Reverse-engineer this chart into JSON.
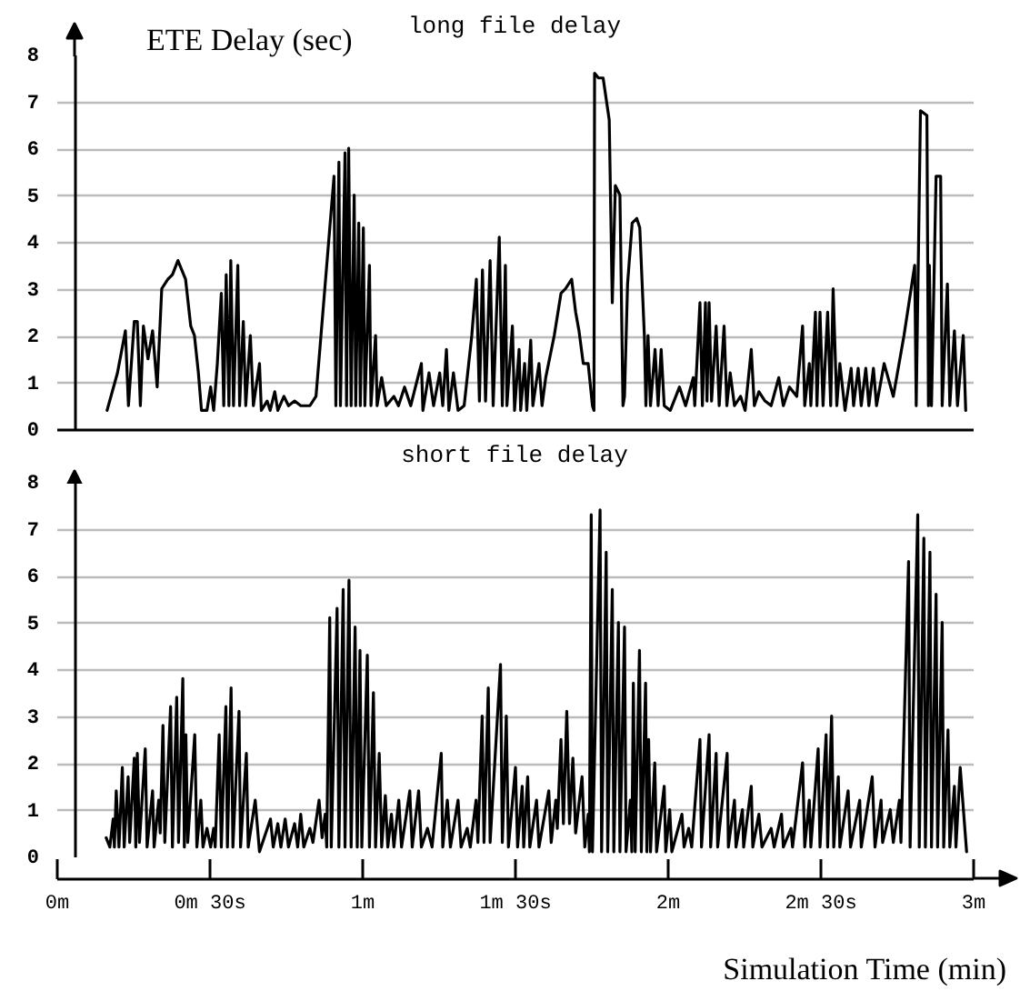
{
  "chart_data": [
    {
      "type": "line",
      "title": "long file delay",
      "ylabel": "ETE Delay (sec)",
      "color": "#000000",
      "xlim": [
        0,
        3
      ],
      "ylim": [
        0,
        8
      ],
      "yticks": [
        0,
        1,
        2,
        3,
        4,
        5,
        6,
        7,
        8
      ],
      "grid": "y",
      "tick_labels": "y",
      "x": [
        0.166,
        0.2,
        0.226,
        0.236,
        0.255,
        0.265,
        0.275,
        0.285,
        0.3,
        0.315,
        0.33,
        0.345,
        0.365,
        0.38,
        0.398,
        0.423,
        0.44,
        0.452,
        0.465,
        0.475,
        0.493,
        0.505,
        0.515,
        0.527,
        0.54,
        0.548,
        0.556,
        0.565,
        0.571,
        0.58,
        0.594,
        0.6,
        0.612,
        0.62,
        0.635,
        0.645,
        0.665,
        0.671,
        0.69,
        0.7,
        0.715,
        0.725,
        0.745,
        0.76,
        0.78,
        0.8,
        0.83,
        0.85,
        0.909,
        0.915,
        0.925,
        0.93,
        0.945,
        0.95,
        0.957,
        0.965,
        0.975,
        0.98,
        0.99,
        0.995,
        1.005,
        1.01,
        1.025,
        1.03,
        1.045,
        1.05,
        1.065,
        1.08,
        1.105,
        1.12,
        1.14,
        1.16,
        1.195,
        1.2,
        1.22,
        1.235,
        1.255,
        1.265,
        1.277,
        1.285,
        1.3,
        1.315,
        1.335,
        1.36,
        1.375,
        1.385,
        1.395,
        1.405,
        1.42,
        1.43,
        1.45,
        1.46,
        1.47,
        1.475,
        1.493,
        1.5,
        1.515,
        1.52,
        1.533,
        1.54,
        1.553,
        1.56,
        1.58,
        1.59,
        1.602,
        1.63,
        1.652,
        1.667,
        1.687,
        1.7,
        1.711,
        1.725,
        1.741,
        1.755,
        1.76,
        1.762,
        1.775,
        1.79,
        1.81,
        1.82,
        1.83,
        1.845,
        1.855,
        1.86,
        1.87,
        1.885,
        1.9,
        1.91,
        1.925,
        1.93,
        1.937,
        1.945,
        1.96,
        1.97,
        1.98,
        1.99,
        2.01,
        2.04,
        2.06,
        2.085,
        2.09,
        2.107,
        2.115,
        2.125,
        2.13,
        2.137,
        2.145,
        2.16,
        2.17,
        2.186,
        2.195,
        2.206,
        2.22,
        2.24,
        2.255,
        2.275,
        2.285,
        2.3,
        2.32,
        2.34,
        2.365,
        2.38,
        2.4,
        2.424,
        2.443,
        2.45,
        2.465,
        2.47,
        2.485,
        2.49,
        2.5,
        2.51,
        2.525,
        2.535,
        2.543,
        2.555,
        2.565,
        2.582,
        2.602,
        2.61,
        2.625,
        2.635,
        2.65,
        2.66,
        2.675,
        2.685,
        2.71,
        2.74,
        2.775,
        2.81,
        2.815,
        2.829,
        2.85,
        2.855,
        2.858,
        2.865,
        2.88,
        2.895,
        2.9,
        2.917,
        2.925,
        2.94,
        2.95,
        2.969,
        2.977
      ],
      "values": [
        0.4,
        1.2,
        2.1,
        0.5,
        2.3,
        2.3,
        0.5,
        2.2,
        1.5,
        2.1,
        0.9,
        3.0,
        3.2,
        3.3,
        3.6,
        3.2,
        2.2,
        2.0,
        1.2,
        0.4,
        0.4,
        0.9,
        0.4,
        1.4,
        2.9,
        0.5,
        3.3,
        0.5,
        3.6,
        0.5,
        3.5,
        0.5,
        2.3,
        0.5,
        2.0,
        0.5,
        1.4,
        0.4,
        0.6,
        0.4,
        0.8,
        0.4,
        0.7,
        0.5,
        0.6,
        0.5,
        0.5,
        0.7,
        5.4,
        0.5,
        5.7,
        0.5,
        5.9,
        0.5,
        6.0,
        0.5,
        5.0,
        0.5,
        4.4,
        0.5,
        4.3,
        0.5,
        3.5,
        0.5,
        2.0,
        0.5,
        1.1,
        0.5,
        0.7,
        0.5,
        0.9,
        0.5,
        1.4,
        0.4,
        1.2,
        0.5,
        1.2,
        0.5,
        1.7,
        0.4,
        1.2,
        0.4,
        0.5,
        2.0,
        3.2,
        0.6,
        3.4,
        0.6,
        3.6,
        0.5,
        4.1,
        0.5,
        3.5,
        0.5,
        2.2,
        0.4,
        1.7,
        0.4,
        1.4,
        0.4,
        1.9,
        0.5,
        1.4,
        0.5,
        1.1,
        2.0,
        2.9,
        3.0,
        3.2,
        2.5,
        2.1,
        1.4,
        1.4,
        0.5,
        0.4,
        7.6,
        7.5,
        7.5,
        6.6,
        2.7,
        5.2,
        5.0,
        0.5,
        0.7,
        3.1,
        4.4,
        4.5,
        4.3,
        2.0,
        0.5,
        2.0,
        0.5,
        1.7,
        0.5,
        1.7,
        0.5,
        0.4,
        0.9,
        0.5,
        1.1,
        0.5,
        2.7,
        0.5,
        2.7,
        0.6,
        2.7,
        0.6,
        2.2,
        0.5,
        2.2,
        0.5,
        1.2,
        0.5,
        0.7,
        0.4,
        1.7,
        0.5,
        0.8,
        0.6,
        0.5,
        1.1,
        0.5,
        0.9,
        0.7,
        2.2,
        0.5,
        1.4,
        0.5,
        2.5,
        0.5,
        2.5,
        0.5,
        2.5,
        0.5,
        3.0,
        0.5,
        1.4,
        0.4,
        1.3,
        0.5,
        1.3,
        0.5,
        1.3,
        0.5,
        1.3,
        0.5,
        1.4,
        0.7,
        2.0,
        3.5,
        0.5,
        6.8,
        6.7,
        0.5,
        3.5,
        0.5,
        5.4,
        5.4,
        0.5,
        3.1,
        0.5,
        2.1,
        0.5,
        2.0,
        0.4
      ]
    },
    {
      "type": "line",
      "title": "short file delay",
      "xlabel": "Simulation Time (min)",
      "color": "#000000",
      "xlim": [
        0,
        3
      ],
      "xticks": [
        {
          "value": 0,
          "label": "0m"
        },
        {
          "value": 0.5,
          "label": "0m 30s"
        },
        {
          "value": 1,
          "label": "1m"
        },
        {
          "value": 1.5,
          "label": "1m 30s"
        },
        {
          "value": 2,
          "label": "2m"
        },
        {
          "value": 2.5,
          "label": "2m 30s"
        },
        {
          "value": 3,
          "label": "3m"
        }
      ],
      "ylim": [
        0,
        8
      ],
      "yticks": [
        0,
        1,
        2,
        3,
        4,
        5,
        6,
        7,
        8
      ],
      "grid": "y",
      "x": [
        0.163,
        0.175,
        0.186,
        0.19,
        0.196,
        0.205,
        0.216,
        0.222,
        0.235,
        0.24,
        0.255,
        0.26,
        0.265,
        0.272,
        0.291,
        0.297,
        0.315,
        0.32,
        0.335,
        0.34,
        0.349,
        0.355,
        0.374,
        0.38,
        0.394,
        0.4,
        0.414,
        0.419,
        0.424,
        0.43,
        0.453,
        0.46,
        0.473,
        0.48,
        0.493,
        0.505,
        0.515,
        0.52,
        0.533,
        0.54,
        0.555,
        0.56,
        0.572,
        0.578,
        0.598,
        0.603,
        0.622,
        0.628,
        0.651,
        0.665,
        0.701,
        0.71,
        0.725,
        0.735,
        0.749,
        0.76,
        0.78,
        0.79,
        0.8,
        0.81,
        0.83,
        0.84,
        0.86,
        0.87,
        0.88,
        0.885,
        0.895,
        0.9,
        0.919,
        0.925,
        0.939,
        0.945,
        0.958,
        0.965,
        0.978,
        0.985,
        0.994,
        1.0,
        1.018,
        1.025,
        1.038,
        1.045,
        1.057,
        1.065,
        1.077,
        1.085,
        1.097,
        1.105,
        1.121,
        1.13,
        1.157,
        1.165,
        1.186,
        1.195,
        1.215,
        1.23,
        1.26,
        1.265,
        1.28,
        1.29,
        1.315,
        1.325,
        1.345,
        1.355,
        1.374,
        1.38,
        1.394,
        1.4,
        1.414,
        1.42,
        1.454,
        1.46,
        1.473,
        1.48,
        1.503,
        1.51,
        1.525,
        1.53,
        1.543,
        1.55,
        1.572,
        1.58,
        1.612,
        1.62,
        1.635,
        1.64,
        1.652,
        1.66,
        1.671,
        1.68,
        1.691,
        1.7,
        1.721,
        1.73,
        1.741,
        1.745,
        1.751,
        1.755,
        1.78,
        1.785,
        1.8,
        1.805,
        1.82,
        1.825,
        1.84,
        1.845,
        1.86,
        1.865,
        1.879,
        1.884,
        1.889,
        1.895,
        1.909,
        1.915,
        1.929,
        1.933,
        1.939,
        1.945,
        1.959,
        1.965,
        1.99,
        1.995,
        2.008,
        2.015,
        2.048,
        2.055,
        2.07,
        2.08,
        2.107,
        2.112,
        2.137,
        2.142,
        2.16,
        2.165,
        2.196,
        2.2,
        2.22,
        2.225,
        2.246,
        2.25,
        2.275,
        2.28,
        2.3,
        2.31,
        2.34,
        2.35,
        2.374,
        2.38,
        2.405,
        2.41,
        2.443,
        2.45,
        2.465,
        2.47,
        2.494,
        2.5,
        2.52,
        2.525,
        2.538,
        2.545,
        2.56,
        2.565,
        2.592,
        2.6,
        2.63,
        2.635,
        2.671,
        2.68,
        2.7,
        2.705,
        2.73,
        2.74,
        2.76,
        2.765,
        2.79,
        2.795,
        2.82,
        2.825,
        2.84,
        2.845,
        2.86,
        2.865,
        2.88,
        2.885,
        2.9,
        2.905,
        2.919,
        2.925,
        2.94,
        2.945,
        2.959,
        2.98
      ],
      "values": [
        0.4,
        0.2,
        0.8,
        0.2,
        1.4,
        0.2,
        1.9,
        0.2,
        1.7,
        0.3,
        2.1,
        0.2,
        2.2,
        0.3,
        2.3,
        0.2,
        1.4,
        0.2,
        1.2,
        0.5,
        2.8,
        0.3,
        3.2,
        0.2,
        3.4,
        0.3,
        3.8,
        0.2,
        2.6,
        0.3,
        2.6,
        0.2,
        1.2,
        0.2,
        0.6,
        0.2,
        0.6,
        0.2,
        2.6,
        0.2,
        3.2,
        0.2,
        3.6,
        0.2,
        3.1,
        0.2,
        2.2,
        0.2,
        1.2,
        0.1,
        0.8,
        0.2,
        0.7,
        0.2,
        0.8,
        0.2,
        0.7,
        0.2,
        0.9,
        0.2,
        0.6,
        0.3,
        1.2,
        0.4,
        0.9,
        0.2,
        5.1,
        0.2,
        5.3,
        0.2,
        5.7,
        0.2,
        5.9,
        0.2,
        4.9,
        0.2,
        4.4,
        0.2,
        4.3,
        0.2,
        3.5,
        0.2,
        2.2,
        0.2,
        1.3,
        0.2,
        0.9,
        0.2,
        1.2,
        0.2,
        1.4,
        0.2,
        1.4,
        0.2,
        0.6,
        0.2,
        2.2,
        0.2,
        1.2,
        0.2,
        1.2,
        0.2,
        0.6,
        0.2,
        1.2,
        0.3,
        3.0,
        0.3,
        3.6,
        0.3,
        4.1,
        0.3,
        3.0,
        0.2,
        1.9,
        0.2,
        1.5,
        0.2,
        1.7,
        0.2,
        1.2,
        0.2,
        1.4,
        0.3,
        1.2,
        0.6,
        2.5,
        0.7,
        3.1,
        0.7,
        2.1,
        0.5,
        1.7,
        0.2,
        0.9,
        0.1,
        7.3,
        0.1,
        7.4,
        0.1,
        6.5,
        0.1,
        5.7,
        0.1,
        5.0,
        0.1,
        4.9,
        0.1,
        1.2,
        0.1,
        3.7,
        0.1,
        4.4,
        0.1,
        3.7,
        0.1,
        2.5,
        0.1,
        2.0,
        0.1,
        1.5,
        0.1,
        1.0,
        0.1,
        0.9,
        0.2,
        0.6,
        0.2,
        2.5,
        0.2,
        2.6,
        0.2,
        2.2,
        0.2,
        2.2,
        0.2,
        1.2,
        0.2,
        1.0,
        0.2,
        1.5,
        0.2,
        0.9,
        0.2,
        0.6,
        0.2,
        0.9,
        0.2,
        0.6,
        0.2,
        2.0,
        0.2,
        1.2,
        0.2,
        2.3,
        0.2,
        2.6,
        0.2,
        3.0,
        0.2,
        1.7,
        0.2,
        1.4,
        0.2,
        1.2,
        0.2,
        1.7,
        0.2,
        1.2,
        0.3,
        1.0,
        0.3,
        1.2,
        0.3,
        6.3,
        0.2,
        7.3,
        0.2,
        6.8,
        0.2,
        6.5,
        0.2,
        5.6,
        0.2,
        5.0,
        0.2,
        2.7,
        0.2,
        1.5,
        0.2,
        1.9,
        0.1
      ]
    }
  ]
}
